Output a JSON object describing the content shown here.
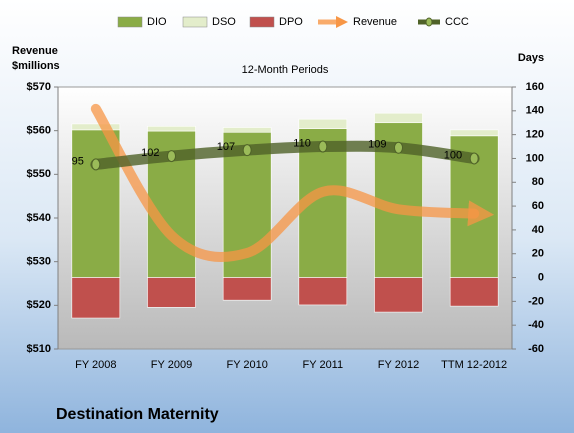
{
  "chart_data": {
    "type": "combo",
    "title": "12-Month Periods",
    "y_label": "Revenue $millions",
    "y2_label": "Days",
    "caption": "Destination Maternity",
    "categories": [
      "FY 2008",
      "FY 2009",
      "FY 2010",
      "FY 2011",
      "FY 2012",
      "TTM 12-2012"
    ],
    "series": [
      {
        "name": "DIO",
        "type": "bar",
        "axis": "y2",
        "color": "#8aac46",
        "values": [
          124,
          123,
          122,
          125,
          130,
          119
        ]
      },
      {
        "name": "DSO",
        "type": "bar",
        "axis": "y2",
        "color": "#e3edcb",
        "values": [
          5,
          4,
          4,
          8,
          8,
          5
        ]
      },
      {
        "name": "DPO",
        "type": "bar",
        "axis": "y2",
        "color": "#c0504d",
        "values": [
          -34,
          -25,
          -19,
          -23,
          -29,
          -24
        ]
      },
      {
        "name": "Revenue",
        "type": "line",
        "axis": "y",
        "color": "#f79646",
        "values": [
          565,
          536,
          532,
          546,
          542,
          541
        ]
      },
      {
        "name": "CCC",
        "type": "line",
        "axis": "y2",
        "color": "#4f6228",
        "values": [
          95,
          102,
          107,
          110,
          109,
          100
        ]
      }
    ],
    "ylim": [
      510,
      570
    ],
    "yticks": [
      {
        "value": 510,
        "label": "$510"
      },
      {
        "value": 520,
        "label": "$520"
      },
      {
        "value": 530,
        "label": "$530"
      },
      {
        "value": 540,
        "label": "$540"
      },
      {
        "value": 550,
        "label": "$550"
      },
      {
        "value": 560,
        "label": "$560"
      },
      {
        "value": 570,
        "label": "$570"
      }
    ],
    "y2lim": [
      -60,
      160
    ],
    "y2ticks": [
      -60,
      -40,
      -20,
      0,
      20,
      40,
      60,
      80,
      100,
      120,
      140,
      160
    ],
    "grid": false
  }
}
